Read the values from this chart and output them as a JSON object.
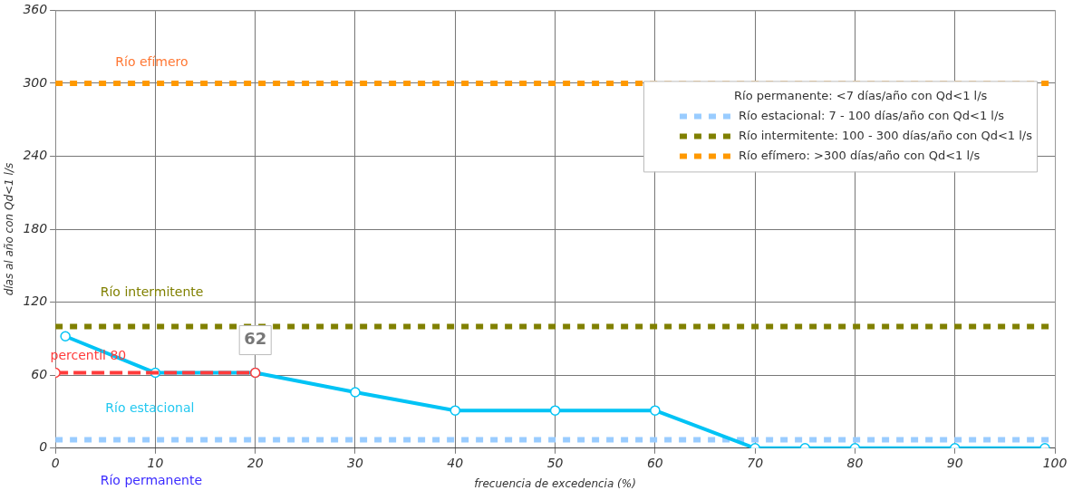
{
  "chart_data": {
    "type": "line",
    "xlabel": "frecuencia de excedencia (%)",
    "ylabel": "días al año con Qd<1 l/s",
    "legend_title": "Río permanente: <7 días/año con Qd<1 l/s",
    "legend": "top right",
    "grid": true,
    "xlim": [
      0,
      100
    ],
    "xticks": [
      0,
      10,
      20,
      30,
      40,
      50,
      60,
      70,
      80,
      90,
      100
    ],
    "ylim": [
      0,
      360
    ],
    "yticks": [
      0,
      60,
      120,
      180,
      240,
      300,
      360
    ],
    "series": [
      {
        "color": "#ff3b3b",
        "marker": "circle",
        "line_style": "dashed",
        "x": [
          0,
          20
        ],
        "values": [
          62,
          62
        ]
      },
      {
        "color": "#00c3f5",
        "marker": "circle",
        "line_style": "solid",
        "x": [
          1,
          10,
          20,
          30,
          40,
          50,
          60,
          70,
          75,
          80,
          90,
          99
        ],
        "values": [
          92,
          62,
          62,
          46,
          31,
          31,
          31,
          0,
          0,
          0,
          0,
          0
        ]
      },
      {
        "name": "Río estacional: 7 - 100 días/año con Qd<1 l/s",
        "color": "#99ccff",
        "marker": "none",
        "line_style": "dotted",
        "x": [
          0,
          100
        ],
        "values": [
          7,
          7
        ]
      },
      {
        "name": "Río intermitente: 100 - 300 días/año con Qd<1 l/s",
        "color": "#808000",
        "marker": "none",
        "line_style": "dotted",
        "x": [
          0,
          100
        ],
        "values": [
          100,
          100
        ]
      },
      {
        "name": "Río efímero: >300 días/año con Qd<1 l/s",
        "color": "#ff9900",
        "marker": "none",
        "line_style": "dotted",
        "x": [
          0,
          100
        ],
        "values": [
          300,
          300
        ]
      }
    ],
    "annotations": [
      "Río efímero",
      "Río intermitente",
      "percentil 80",
      "Río estacional",
      "Río permanente",
      {
        "text": "62",
        "x": 20,
        "y": 62
      }
    ]
  }
}
